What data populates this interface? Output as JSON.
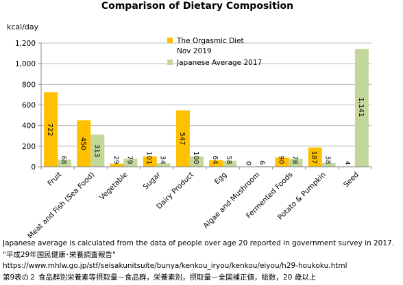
{
  "chart_data": {
    "type": "bar",
    "title": "Comparison of Dietary Composition",
    "ylabel": "kcal/day",
    "xlabel": "",
    "ylim": [
      0,
      1200
    ],
    "yticks": [
      "0",
      "200",
      "400",
      "600",
      "800",
      "1,000",
      "1,200"
    ],
    "grid": true,
    "legend_position": "top-center",
    "categories": [
      "Fruit",
      "Meat and Fish (Sea Food)",
      "Vegetable",
      "Sugar",
      "Dairy Product",
      "Egg",
      "Algae and Mushroom",
      "Fermented Foods",
      "Potato & Pumpkin",
      "Seed"
    ],
    "series": [
      {
        "name": "The Orgasmic Diet Nov 2019",
        "legend_lines": [
          "The Orgasmic Diet",
          "Nov 2019"
        ],
        "color": "#ffc000",
        "values": [
          722,
          450,
          29,
          101,
          547,
          64,
          0,
          90,
          187,
          4
        ],
        "labels": [
          "722",
          "450",
          "29",
          "101",
          "547",
          "64",
          "0",
          "90",
          "187",
          "4"
        ]
      },
      {
        "name": "Japanese Average 2017",
        "legend_lines": [
          "Japanese Average 2017"
        ],
        "color": "#c4d79b",
        "values": [
          68,
          313,
          79,
          34,
          100,
          58,
          6,
          78,
          38,
          1141
        ],
        "labels": [
          "68",
          "313",
          "79",
          "34",
          "100",
          "58",
          "6",
          "78",
          "38",
          "1,141"
        ]
      }
    ]
  },
  "notes": {
    "line1": "Japanese average is calculated from the data of people over age 20 reported in government survey in 2017.",
    "line2": "\"平成29年国民健康･栄養調査報告\"",
    "line3": "https://www.mhlw.go.jp/stf/seisakunitsuite/bunya/kenkou_iryou/kenkou/eiyou/h29-houkoku.html",
    "line4": "第9表の２ 食品群別栄養素等摂取量－食品群，栄養素別，摂取量－全国補正値，総数，20 歳以上"
  }
}
